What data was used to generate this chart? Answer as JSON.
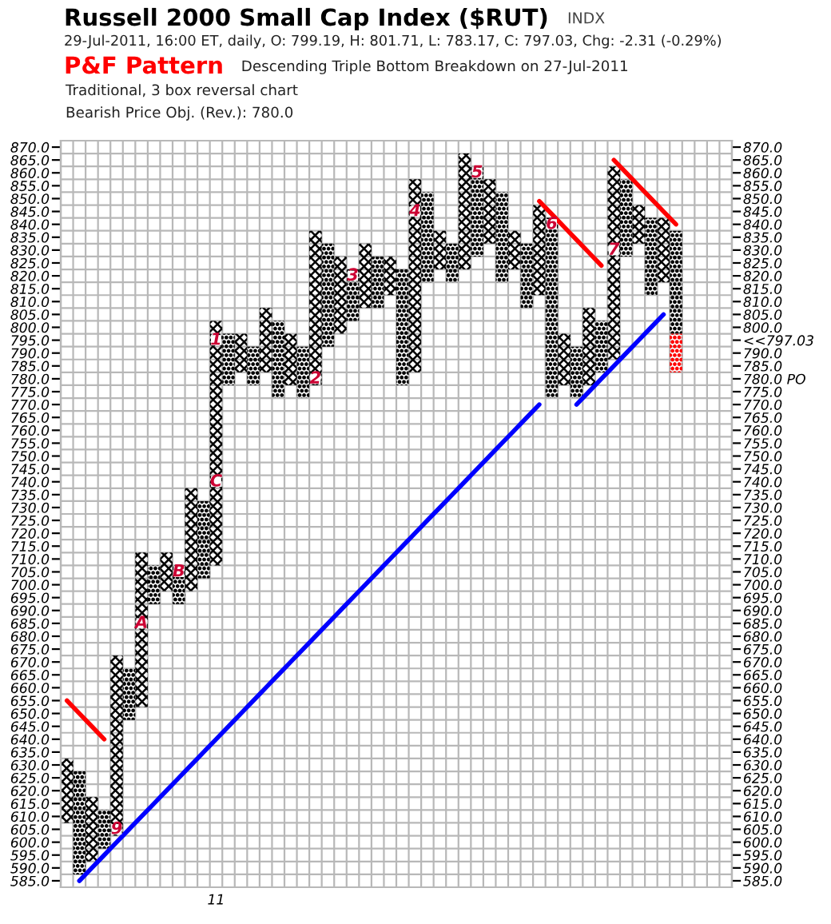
{
  "chart_data": {
    "type": "bar",
    "title": "Russell 2000 Small Cap Index ($RUT)",
    "subtitle": "29-Jul-2011, 16:00 ET, daily, O: 799.19, H: 801.71, L: 783.17, C: 797.03, Chg: -2.31 (-0.29%)",
    "annotations": [
      "INDX",
      "P&F Pattern",
      "Descending Triple Bottom Breakdown on 27-Jul-2011",
      "Traditional, 3 box reversal chart",
      "Bearish Price Obj. (Rev.): 780.0"
    ],
    "categories": [
      null,
      null,
      null,
      null,
      null,
      null,
      null,
      null,
      null,
      null,
      null,
      null,
      "11",
      null,
      null,
      null,
      null,
      null,
      null,
      null,
      null,
      null,
      null,
      null,
      null,
      null,
      null,
      null,
      null,
      null,
      null,
      null,
      null,
      null,
      null,
      null,
      null,
      null,
      null,
      null,
      null,
      null,
      null,
      null,
      null,
      null,
      null,
      null,
      null,
      null,
      null,
      null,
      null,
      null
    ],
    "series": [
      {
        "marker": "cross",
        "color": "#000000",
        "base": [
          607.5,
          null,
          592.5,
          null,
          602.5,
          null,
          652.5,
          null,
          697.5,
          null,
          697.5,
          null,
          707.5,
          null,
          782.5,
          null,
          782.5,
          null,
          777.5,
          null,
          777.5,
          null,
          797.5,
          null,
          807.5,
          null,
          812.5,
          null,
          782.5,
          null,
          822.5,
          null,
          822.5,
          null,
          832.5,
          null,
          822.5,
          null,
          812.5,
          null,
          777.5,
          null,
          777.5,
          null,
          787.5,
          null,
          832.5,
          null,
          817.5,
          null,
          null,
          null,
          null,
          null
        ],
        "values": [
          25,
          null,
          25,
          null,
          70,
          null,
          60,
          null,
          15,
          null,
          40,
          null,
          95,
          null,
          15,
          null,
          25,
          null,
          20,
          null,
          60,
          null,
          30,
          null,
          25,
          null,
          15,
          null,
          75,
          null,
          15,
          null,
          45,
          null,
          25,
          null,
          15,
          null,
          35,
          null,
          20,
          null,
          30,
          null,
          75,
          null,
          15,
          null,
          25,
          null,
          null,
          null,
          null,
          null
        ]
      },
      {
        "marker": "circle",
        "color": "#000000",
        "base": [
          null,
          587.5,
          null,
          597.5,
          null,
          647.5,
          null,
          692.5,
          null,
          692.5,
          null,
          702.5,
          null,
          777.5,
          null,
          777.5,
          null,
          772.5,
          null,
          772.5,
          null,
          792.5,
          null,
          802.5,
          null,
          807.5,
          null,
          777.5,
          null,
          817.5,
          null,
          817.5,
          null,
          827.5,
          null,
          817.5,
          null,
          807.5,
          null,
          772.5,
          null,
          772.5,
          null,
          782.5,
          null,
          827.5,
          null,
          812.5,
          null,
          797.5,
          null,
          null,
          null,
          null
        ],
        "values": [
          null,
          40,
          null,
          15,
          null,
          20,
          null,
          15,
          null,
          15,
          null,
          30,
          null,
          20,
          null,
          15,
          null,
          30,
          null,
          20,
          null,
          40,
          null,
          20,
          null,
          20,
          null,
          45,
          null,
          35,
          null,
          15,
          null,
          35,
          null,
          35,
          null,
          25,
          null,
          70,
          null,
          20,
          null,
          20,
          null,
          30,
          null,
          30,
          null,
          40,
          null,
          null,
          null,
          null
        ]
      },
      {
        "marker": "circle",
        "color": "#ff0000",
        "base": [
          null,
          null,
          null,
          null,
          null,
          null,
          null,
          null,
          null,
          null,
          null,
          null,
          null,
          null,
          null,
          null,
          null,
          null,
          null,
          null,
          null,
          null,
          null,
          null,
          null,
          null,
          null,
          null,
          null,
          null,
          null,
          null,
          null,
          null,
          null,
          null,
          null,
          null,
          null,
          null,
          null,
          null,
          null,
          null,
          null,
          null,
          null,
          null,
          null,
          782.5,
          null,
          null,
          null,
          null
        ],
        "values": [
          null,
          null,
          null,
          null,
          null,
          null,
          null,
          null,
          null,
          null,
          null,
          null,
          null,
          null,
          null,
          null,
          null,
          null,
          null,
          null,
          null,
          null,
          null,
          null,
          null,
          null,
          null,
          null,
          null,
          null,
          null,
          null,
          null,
          null,
          null,
          null,
          null,
          null,
          null,
          null,
          null,
          null,
          null,
          null,
          null,
          null,
          null,
          null,
          null,
          15,
          null,
          null,
          null,
          null
        ]
      },
      {
        "type": "scatter",
        "color": "#cc0033",
        "name": "9",
        "values": [
          null,
          null,
          null,
          null,
          605,
          null,
          null,
          null,
          null,
          null,
          null,
          null,
          null,
          null,
          null,
          null,
          null,
          null,
          null,
          null,
          null,
          null,
          null,
          null,
          null,
          null,
          null,
          null,
          null,
          null,
          null,
          null,
          null,
          null,
          null,
          null,
          null,
          null,
          null,
          null,
          null,
          null,
          null,
          null,
          null,
          null,
          null,
          null,
          null,
          null,
          null,
          null,
          null,
          null
        ]
      },
      {
        "type": "scatter",
        "color": "#cc0033",
        "name": "A",
        "values": [
          null,
          null,
          null,
          null,
          null,
          null,
          685,
          null,
          null,
          null,
          null,
          null,
          null,
          null,
          null,
          null,
          null,
          null,
          null,
          null,
          null,
          null,
          null,
          null,
          null,
          null,
          null,
          null,
          null,
          null,
          null,
          null,
          null,
          null,
          null,
          null,
          null,
          null,
          null,
          null,
          null,
          null,
          null,
          null,
          null,
          null,
          null,
          null,
          null,
          null,
          null,
          null,
          null,
          null
        ]
      },
      {
        "type": "scatter",
        "color": "#cc0033",
        "name": "B",
        "values": [
          null,
          null,
          null,
          null,
          null,
          null,
          null,
          null,
          null,
          705,
          null,
          null,
          null,
          null,
          null,
          null,
          null,
          null,
          null,
          null,
          null,
          null,
          null,
          null,
          null,
          null,
          null,
          null,
          null,
          null,
          null,
          null,
          null,
          null,
          null,
          null,
          null,
          null,
          null,
          null,
          null,
          null,
          null,
          null,
          null,
          null,
          null,
          null,
          null,
          null,
          null,
          null,
          null,
          null
        ]
      },
      {
        "type": "scatter",
        "color": "#cc0033",
        "name": "C",
        "values": [
          null,
          null,
          null,
          null,
          null,
          null,
          null,
          null,
          null,
          null,
          null,
          null,
          740,
          null,
          null,
          null,
          null,
          null,
          null,
          null,
          null,
          null,
          null,
          null,
          null,
          null,
          null,
          null,
          null,
          null,
          null,
          null,
          null,
          null,
          null,
          null,
          null,
          null,
          null,
          null,
          null,
          null,
          null,
          null,
          null,
          null,
          null,
          null,
          null,
          null,
          null,
          null,
          null,
          null
        ]
      },
      {
        "type": "scatter",
        "color": "#cc0033",
        "name": "1",
        "values": [
          null,
          null,
          null,
          null,
          null,
          null,
          null,
          null,
          null,
          null,
          null,
          null,
          795,
          null,
          null,
          null,
          null,
          null,
          null,
          null,
          null,
          null,
          null,
          null,
          null,
          null,
          null,
          null,
          null,
          null,
          null,
          null,
          null,
          null,
          null,
          null,
          null,
          null,
          null,
          null,
          null,
          null,
          null,
          null,
          null,
          null,
          null,
          null,
          null,
          null,
          null,
          null,
          null,
          null
        ]
      },
      {
        "type": "scatter",
        "color": "#cc0033",
        "name": "2",
        "values": [
          null,
          null,
          null,
          null,
          null,
          null,
          null,
          null,
          null,
          null,
          null,
          null,
          null,
          null,
          null,
          null,
          null,
          null,
          null,
          null,
          780,
          null,
          null,
          null,
          null,
          null,
          null,
          null,
          null,
          null,
          null,
          null,
          null,
          null,
          null,
          null,
          null,
          null,
          null,
          null,
          null,
          null,
          null,
          null,
          null,
          null,
          null,
          null,
          null,
          null,
          null,
          null,
          null,
          null
        ]
      },
      {
        "type": "scatter",
        "color": "#cc0033",
        "name": "3",
        "values": [
          null,
          null,
          null,
          null,
          null,
          null,
          null,
          null,
          null,
          null,
          null,
          null,
          null,
          null,
          null,
          null,
          null,
          null,
          null,
          null,
          null,
          null,
          null,
          820,
          null,
          null,
          null,
          null,
          null,
          null,
          null,
          null,
          null,
          null,
          null,
          null,
          null,
          null,
          null,
          null,
          null,
          null,
          null,
          null,
          null,
          null,
          null,
          null,
          null,
          null,
          null,
          null,
          null,
          null
        ]
      },
      {
        "type": "scatter",
        "color": "#cc0033",
        "name": "4",
        "values": [
          null,
          null,
          null,
          null,
          null,
          null,
          null,
          null,
          null,
          null,
          null,
          null,
          null,
          null,
          null,
          null,
          null,
          null,
          null,
          null,
          null,
          null,
          null,
          null,
          null,
          null,
          null,
          null,
          845,
          null,
          null,
          null,
          null,
          null,
          null,
          null,
          null,
          null,
          null,
          null,
          null,
          null,
          null,
          null,
          null,
          null,
          null,
          null,
          null,
          null,
          null,
          null,
          null,
          null
        ]
      },
      {
        "type": "scatter",
        "color": "#cc0033",
        "name": "5",
        "values": [
          null,
          null,
          null,
          null,
          null,
          null,
          null,
          null,
          null,
          null,
          null,
          null,
          null,
          null,
          null,
          null,
          null,
          null,
          null,
          null,
          null,
          null,
          null,
          null,
          null,
          null,
          null,
          null,
          null,
          null,
          null,
          null,
          null,
          860,
          null,
          null,
          null,
          null,
          null,
          null,
          null,
          null,
          null,
          null,
          null,
          null,
          null,
          null,
          null,
          null,
          null,
          null,
          null,
          null
        ]
      },
      {
        "type": "scatter",
        "color": "#cc0033",
        "name": "6",
        "values": [
          null,
          null,
          null,
          null,
          null,
          null,
          null,
          null,
          null,
          null,
          null,
          null,
          null,
          null,
          null,
          null,
          null,
          null,
          null,
          null,
          null,
          null,
          null,
          null,
          null,
          null,
          null,
          null,
          null,
          null,
          null,
          null,
          null,
          null,
          null,
          null,
          null,
          null,
          null,
          840,
          null,
          null,
          null,
          null,
          null,
          null,
          null,
          null,
          null,
          null,
          null,
          null,
          null,
          null
        ]
      },
      {
        "type": "scatter",
        "color": "#cc0033",
        "name": "7",
        "values": [
          null,
          null,
          null,
          null,
          null,
          null,
          null,
          null,
          null,
          null,
          null,
          null,
          null,
          null,
          null,
          null,
          null,
          null,
          null,
          null,
          null,
          null,
          null,
          null,
          null,
          null,
          null,
          null,
          null,
          null,
          null,
          null,
          null,
          null,
          null,
          null,
          null,
          null,
          null,
          null,
          null,
          null,
          null,
          null,
          830,
          null,
          null,
          null,
          null,
          null,
          null,
          null,
          null,
          null
        ]
      },
      {
        "type": "line",
        "color": "#ff0000",
        "values": [
          655,
          650,
          645,
          640,
          null,
          null,
          null,
          null,
          null,
          null,
          null,
          null,
          null,
          null,
          null,
          null,
          null,
          null,
          null,
          null,
          null,
          null,
          null,
          null,
          null,
          null,
          null,
          null,
          null,
          null,
          null,
          null,
          null,
          null,
          null,
          null,
          null,
          null,
          null,
          null,
          null,
          null,
          null,
          null,
          null,
          null,
          null,
          null,
          null,
          null,
          null,
          null,
          null,
          null
        ]
      },
      {
        "type": "line",
        "color": "#ff0000",
        "values": [
          null,
          null,
          null,
          null,
          null,
          null,
          null,
          null,
          null,
          null,
          null,
          null,
          null,
          null,
          null,
          null,
          null,
          null,
          null,
          null,
          null,
          null,
          null,
          null,
          null,
          null,
          null,
          null,
          null,
          null,
          null,
          null,
          null,
          null,
          null,
          null,
          null,
          null,
          849,
          844,
          839,
          834,
          829,
          824,
          null,
          null,
          null,
          null,
          null,
          null,
          null,
          null,
          null,
          null
        ]
      },
      {
        "type": "line",
        "color": "#ff0000",
        "values": [
          null,
          null,
          null,
          null,
          null,
          null,
          null,
          null,
          null,
          null,
          null,
          null,
          null,
          null,
          null,
          null,
          null,
          null,
          null,
          null,
          null,
          null,
          null,
          null,
          null,
          null,
          null,
          null,
          null,
          null,
          null,
          null,
          null,
          null,
          null,
          null,
          null,
          null,
          null,
          null,
          null,
          null,
          null,
          null,
          865,
          860,
          855,
          850,
          845,
          840,
          null,
          null,
          null,
          null
        ]
      },
      {
        "type": "line",
        "color": "#0000ff",
        "values": [
          null,
          585,
          590,
          595,
          600,
          605,
          610,
          615,
          620,
          625,
          630,
          635,
          640,
          645,
          650,
          655,
          660,
          665,
          670,
          675,
          680,
          685,
          690,
          695,
          700,
          705,
          710,
          715,
          720,
          725,
          730,
          735,
          740,
          745,
          750,
          755,
          760,
          765,
          770,
          null,
          null,
          null,
          null,
          null,
          null,
          null,
          null,
          null,
          null,
          null,
          null,
          null,
          null,
          null
        ]
      },
      {
        "type": "line",
        "color": "#0000ff",
        "values": [
          null,
          null,
          null,
          null,
          null,
          null,
          null,
          null,
          null,
          null,
          null,
          null,
          null,
          null,
          null,
          null,
          null,
          null,
          null,
          null,
          null,
          null,
          null,
          null,
          null,
          null,
          null,
          null,
          null,
          null,
          null,
          null,
          null,
          null,
          null,
          null,
          null,
          null,
          null,
          null,
          null,
          770,
          775,
          780,
          785,
          790,
          795,
          800,
          805,
          null,
          null,
          null,
          null,
          null
        ]
      }
    ],
    "ylim": [
      582.5,
      872.5
    ],
    "yticks": [
      {
        "value": 870,
        "label": "870.0"
      },
      {
        "value": 865,
        "label": "865.0"
      },
      {
        "value": 860,
        "label": "860.0"
      },
      {
        "value": 855,
        "label": "855.0"
      },
      {
        "value": 850,
        "label": "850.0"
      },
      {
        "value": 845,
        "label": "845.0"
      },
      {
        "value": 840,
        "label": "840.0"
      },
      {
        "value": 835,
        "label": "835.0"
      },
      {
        "value": 830,
        "label": "830.0"
      },
      {
        "value": 825,
        "label": "825.0"
      },
      {
        "value": 820,
        "label": "820.0"
      },
      {
        "value": 815,
        "label": "815.0"
      },
      {
        "value": 810,
        "label": "810.0"
      },
      {
        "value": 805,
        "label": "805.0"
      },
      {
        "value": 800,
        "label": "800.0"
      },
      {
        "value": 795,
        "label": "795.0"
      },
      {
        "value": 790,
        "label": "790.0"
      },
      {
        "value": 785,
        "label": "785.0"
      },
      {
        "value": 780,
        "label": "780.0"
      },
      {
        "value": 775,
        "label": "775.0"
      },
      {
        "value": 770,
        "label": "770.0"
      },
      {
        "value": 765,
        "label": "765.0"
      },
      {
        "value": 760,
        "label": "760.0"
      },
      {
        "value": 755,
        "label": "755.0"
      },
      {
        "value": 750,
        "label": "750.0"
      },
      {
        "value": 745,
        "label": "745.0"
      },
      {
        "value": 740,
        "label": "740.0"
      },
      {
        "value": 735,
        "label": "735.0"
      },
      {
        "value": 730,
        "label": "730.0"
      },
      {
        "value": 725,
        "label": "725.0"
      },
      {
        "value": 720,
        "label": "720.0"
      },
      {
        "value": 715,
        "label": "715.0"
      },
      {
        "value": 710,
        "label": "710.0"
      },
      {
        "value": 705,
        "label": "705.0"
      },
      {
        "value": 700,
        "label": "700.0"
      },
      {
        "value": 695,
        "label": "695.0"
      },
      {
        "value": 690,
        "label": "690.0"
      },
      {
        "value": 685,
        "label": "685.0"
      },
      {
        "value": 680,
        "label": "680.0"
      },
      {
        "value": 675,
        "label": "675.0"
      },
      {
        "value": 670,
        "label": "670.0"
      },
      {
        "value": 665,
        "label": "665.0"
      },
      {
        "value": 660,
        "label": "660.0"
      },
      {
        "value": 655,
        "label": "655.0"
      },
      {
        "value": 650,
        "label": "650.0"
      },
      {
        "value": 645,
        "label": "645.0"
      },
      {
        "value": 640,
        "label": "640.0"
      },
      {
        "value": 635,
        "label": "635.0"
      },
      {
        "value": 630,
        "label": "630.0"
      },
      {
        "value": 625,
        "label": "625.0"
      },
      {
        "value": 620,
        "label": "620.0"
      },
      {
        "value": 615,
        "label": "615.0"
      },
      {
        "value": 610,
        "label": "610.0"
      },
      {
        "value": 605,
        "label": "605.0"
      },
      {
        "value": 600,
        "label": "600.0"
      },
      {
        "value": 595,
        "label": "595.0"
      },
      {
        "value": 590,
        "label": "590.0"
      },
      {
        "value": 585,
        "label": "585.0"
      }
    ],
    "y2lim": [
      582.5,
      872.5
    ],
    "y2ticks": [
      {
        "value": 870,
        "label": "870.0"
      },
      {
        "value": 865,
        "label": "865.0"
      },
      {
        "value": 860,
        "label": "860.0"
      },
      {
        "value": 855,
        "label": "855.0"
      },
      {
        "value": 850,
        "label": "850.0"
      },
      {
        "value": 845,
        "label": "845.0"
      },
      {
        "value": 840,
        "label": "840.0"
      },
      {
        "value": 835,
        "label": "835.0"
      },
      {
        "value": 830,
        "label": "830.0"
      },
      {
        "value": 825,
        "label": "825.0"
      },
      {
        "value": 820,
        "label": "820.0"
      },
      {
        "value": 815,
        "label": "815.0"
      },
      {
        "value": 810,
        "label": "810.0"
      },
      {
        "value": 805,
        "label": "805.0"
      },
      {
        "value": 800,
        "label": "800.0"
      },
      {
        "value": 795,
        "label": "<<797.03"
      },
      {
        "value": 790,
        "label": "790.0"
      },
      {
        "value": 785,
        "label": "785.0"
      },
      {
        "value": 780,
        "label": "780.0 PO"
      },
      {
        "value": 775,
        "label": "775.0"
      },
      {
        "value": 770,
        "label": "770.0"
      },
      {
        "value": 765,
        "label": "765.0"
      },
      {
        "value": 760,
        "label": "760.0"
      },
      {
        "value": 755,
        "label": "755.0"
      },
      {
        "value": 750,
        "label": "750.0"
      },
      {
        "value": 745,
        "label": "745.0"
      },
      {
        "value": 740,
        "label": "740.0"
      },
      {
        "value": 735,
        "label": "735.0"
      },
      {
        "value": 730,
        "label": "730.0"
      },
      {
        "value": 725,
        "label": "725.0"
      },
      {
        "value": 720,
        "label": "720.0"
      },
      {
        "value": 715,
        "label": "715.0"
      },
      {
        "value": 710,
        "label": "710.0"
      },
      {
        "value": 705,
        "label": "705.0"
      },
      {
        "value": 700,
        "label": "700.0"
      },
      {
        "value": 695,
        "label": "695.0"
      },
      {
        "value": 690,
        "label": "690.0"
      },
      {
        "value": 685,
        "label": "685.0"
      },
      {
        "value": 680,
        "label": "680.0"
      },
      {
        "value": 675,
        "label": "675.0"
      },
      {
        "value": 670,
        "label": "670.0"
      },
      {
        "value": 665,
        "label": "665.0"
      },
      {
        "value": 660,
        "label": "660.0"
      },
      {
        "value": 655,
        "label": "655.0"
      },
      {
        "value": 650,
        "label": "650.0"
      },
      {
        "value": 645,
        "label": "645.0"
      },
      {
        "value": 640,
        "label": "640.0"
      },
      {
        "value": 635,
        "label": "635.0"
      },
      {
        "value": 630,
        "label": "630.0"
      },
      {
        "value": 625,
        "label": "625.0"
      },
      {
        "value": 620,
        "label": "620.0"
      },
      {
        "value": 615,
        "label": "615.0"
      },
      {
        "value": 610,
        "label": "610.0"
      },
      {
        "value": 605,
        "label": "605.0"
      },
      {
        "value": 600,
        "label": "600.0"
      },
      {
        "value": 595,
        "label": "595.0"
      },
      {
        "value": 590,
        "label": "590.0"
      },
      {
        "value": 585,
        "label": "585.0"
      }
    ],
    "grid": true
  }
}
